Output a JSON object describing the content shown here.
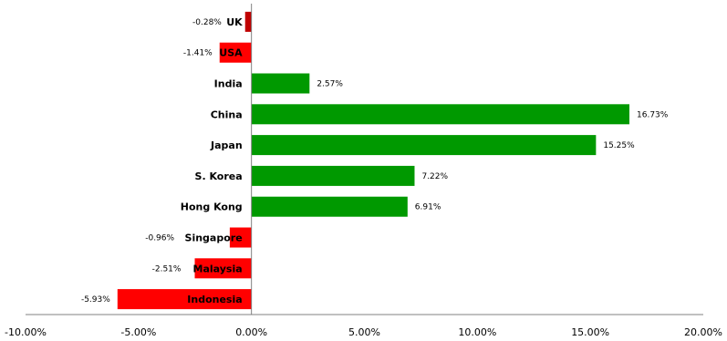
{
  "chart_data": {
    "type": "bar",
    "orientation": "horizontal",
    "title": "",
    "xlabel": "",
    "ylabel": "",
    "categories": [
      "UK",
      "USA",
      "India",
      "China",
      "Japan",
      "S. Korea",
      "Hong Kong",
      "Singapore",
      "Malaysia",
      "Indonesia"
    ],
    "values": [
      -0.28,
      -1.41,
      2.57,
      16.73,
      15.25,
      7.22,
      6.91,
      -0.96,
      -2.51,
      -5.93
    ],
    "value_labels": [
      "-0.28%",
      "-1.41%",
      "2.57%",
      "16.73%",
      "15.25%",
      "7.22%",
      "6.91%",
      "-0.96%",
      "-2.51%",
      "-5.93%"
    ],
    "xlim": [
      -10,
      20
    ],
    "xticks": [
      -10,
      -5,
      0,
      5,
      10,
      15,
      20
    ],
    "xtick_labels": [
      "-10.00%",
      "-5.00%",
      "0.00%",
      "5.00%",
      "10.00%",
      "15.00%",
      "20.00%"
    ],
    "grid": false,
    "legend": "none",
    "colors": {
      "positive": "#009900",
      "negative": "#ff0000",
      "negative_small": "#c00000",
      "axis": "#808080",
      "text": "#000000"
    }
  }
}
